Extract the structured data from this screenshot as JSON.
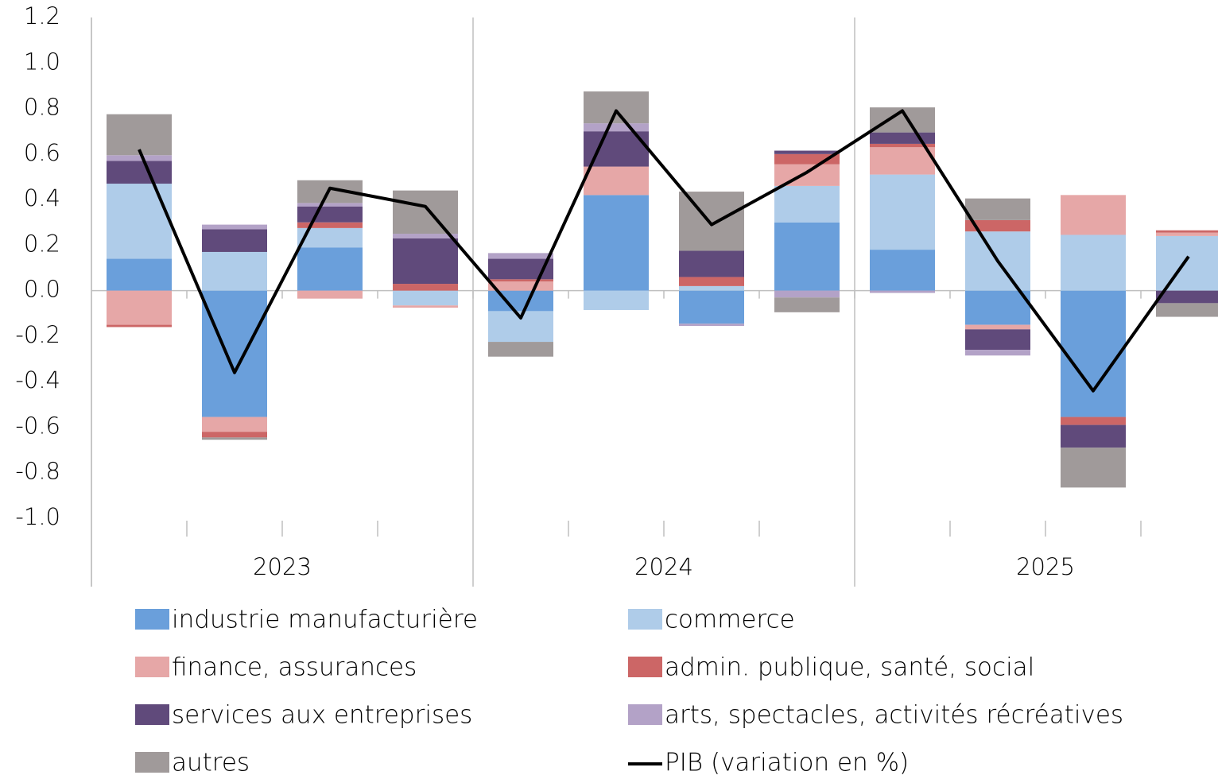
{
  "chart_data": {
    "type": "bar",
    "stacked": true,
    "categories": [
      null,
      null,
      null,
      null,
      null,
      null,
      null,
      null,
      null,
      null,
      null,
      null
    ],
    "groups": [
      {
        "label": "2023",
        "size": 4
      },
      {
        "label": "2024",
        "size": 4
      },
      {
        "label": "2025",
        "size": 4
      }
    ],
    "ylim": [
      -1.0,
      1.2
    ],
    "yticks": [
      {
        "value": -1.0,
        "label": "-1.0"
      },
      -0.8,
      -0.6,
      -0.4,
      -0.2,
      {
        "value": 0,
        "label": "0.0"
      },
      0.2,
      0.4,
      0.6,
      0.8,
      {
        "value": 1.0,
        "label": "1.0"
      },
      1.2
    ],
    "grid": false,
    "series": [
      {
        "name": "industrie manufacturière",
        "color": "#6a9fdb",
        "values": [
          0.14,
          -0.555,
          0.19,
          0,
          -0.09,
          0.42,
          -0.145,
          0.3,
          0.18,
          -0.15,
          -0.555,
          0
        ]
      },
      {
        "name": "commerce",
        "color": "#afcce9",
        "values": [
          0.33,
          0.17,
          0.085,
          -0.065,
          -0.135,
          -0.085,
          0.02,
          0.16,
          0.33,
          0.26,
          0.245,
          0.24
        ]
      },
      {
        "name": "finance, assurances",
        "color": "#e6a7a7",
        "values": [
          -0.15,
          -0.065,
          -0.035,
          -0.01,
          0.04,
          0.125,
          0,
          0.095,
          0.12,
          -0.02,
          0.175,
          0.015
        ]
      },
      {
        "name": "admin. publique, santé, social",
        "color": "#cc6666",
        "values": [
          -0.01,
          -0.025,
          0.025,
          0.03,
          0.01,
          0,
          0.04,
          0.045,
          0.015,
          0.05,
          -0.035,
          0.01
        ]
      },
      {
        "name": "services aux entreprises",
        "color": "#604a7b",
        "values": [
          0.1,
          0.1,
          0.07,
          0.2,
          0.09,
          0.155,
          0.115,
          0.015,
          0.05,
          -0.09,
          -0.1,
          -0.055
        ]
      },
      {
        "name": "arts, spectacles, activités récréatives",
        "color": "#b3a2c7",
        "values": [
          0.025,
          0.02,
          0.015,
          0.02,
          0.025,
          0.035,
          -0.01,
          -0.03,
          -0.01,
          -0.025,
          0,
          0
        ]
      },
      {
        "name": "autres",
        "color": "#a09a9a",
        "values": [
          0.18,
          -0.01,
          0.1,
          0.19,
          -0.065,
          0.14,
          0.26,
          -0.065,
          0.11,
          0.095,
          -0.175,
          -0.06
        ]
      },
      {
        "name": "PIB (variation en %)",
        "color": "#000000",
        "type": "line",
        "values": [
          0.62,
          -0.36,
          0.45,
          0.37,
          -0.12,
          0.79,
          0.29,
          0.52,
          0.79,
          0.13,
          -0.44,
          0.15
        ]
      }
    ]
  }
}
